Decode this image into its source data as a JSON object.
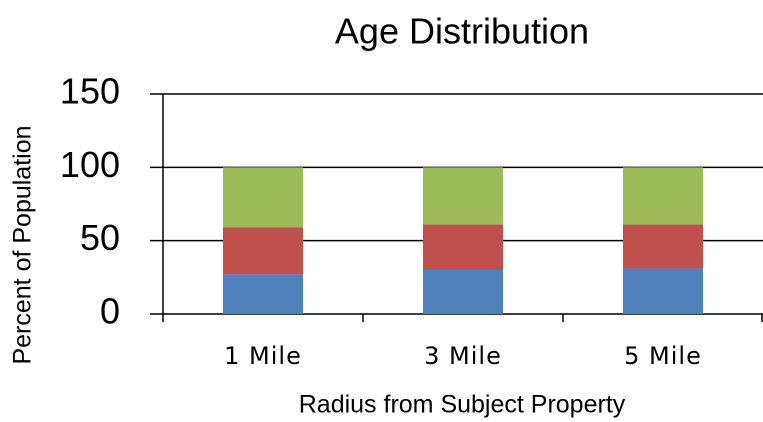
{
  "chart_data": {
    "type": "stacked_bar",
    "title": "Age Distribution",
    "xlabel": "Radius from Subject Property",
    "ylabel": "Percent of Population",
    "categories": [
      "1 Mile",
      "3 Mile",
      "5 Mile"
    ],
    "series": [
      {
        "color": "#4f81bd",
        "values": [
          27,
          30,
          31
        ]
      },
      {
        "color": "#c0504d",
        "values": [
          32,
          31,
          30
        ]
      },
      {
        "color": "#9bbb59",
        "values": [
          41,
          39,
          39
        ]
      }
    ],
    "ylim": [
      0,
      150
    ],
    "yticks": [
      0,
      50,
      100,
      150
    ],
    "grid": true
  }
}
